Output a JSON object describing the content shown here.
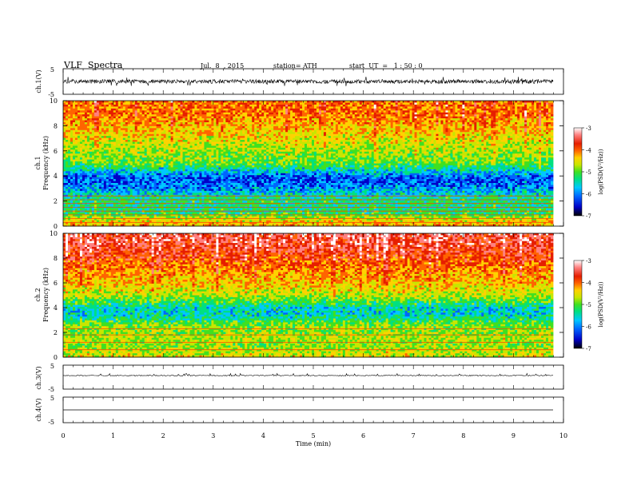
{
  "header": {
    "title": "VLF  Spectra",
    "date": "Jul.  8  , 2015",
    "station": "station= ATH",
    "start": "start  UT  =   1 : 50 : 0"
  },
  "colors": {
    "axis": "#000000",
    "colormap": [
      "#000000",
      "#0000c8",
      "#0064ff",
      "#00c8ff",
      "#00e080",
      "#40e020",
      "#c8e600",
      "#ffd200",
      "#ff6400",
      "#e61e00",
      "#ff8080",
      "#ffffff"
    ]
  },
  "chart_data": [
    {
      "panel": "ch1-waveform",
      "type": "line",
      "ylabel": "ch.1(V)",
      "xlim": [
        0,
        10
      ],
      "ylim": [
        -5,
        5
      ],
      "yticks": [
        "5",
        "-5"
      ],
      "note": "dense noisy waveform centered near 0 V with spikes to about ±1.5 V over 0–9.8 min"
    },
    {
      "panel": "ch1-spectrogram",
      "type": "heatmap",
      "ylabel": "ch.1\nFrequency  (kHz)",
      "ylabel_line1": "ch.1",
      "ylabel_line2": "Frequency  (kHz)",
      "xlim": [
        0,
        10
      ],
      "ylim": [
        0,
        10
      ],
      "yticks": [
        "0",
        "2",
        "4",
        "6",
        "8",
        "10"
      ],
      "colorbar": {
        "label": "log(PSD(V²/Hz))",
        "range": [
          -7,
          -3
        ],
        "ticks": [
          "-3",
          "-4",
          "-5",
          "-6",
          "-7"
        ]
      },
      "frequency_profile": {
        "freq_kHz": [
          0,
          0.5,
          1,
          1.5,
          2,
          2.5,
          3,
          3.5,
          4,
          4.5,
          5,
          6,
          7,
          8,
          9,
          10
        ],
        "log_psd": [
          -4.2,
          -4.6,
          -5.4,
          -5.6,
          -5.5,
          -5.8,
          -6.2,
          -6.5,
          -6.4,
          -5.8,
          -5.2,
          -4.9,
          -4.6,
          -4.3,
          -4.0,
          -4.0
        ]
      },
      "horizontal_lines_kHz": [
        0.3,
        0.6,
        0.9,
        1.2,
        1.5,
        1.8,
        2.1,
        2.4
      ]
    },
    {
      "panel": "ch2-spectrogram",
      "type": "heatmap",
      "ylabel": "ch.2\nFrequency  (kHz)",
      "ylabel_line1": "ch.2",
      "ylabel_line2": "Frequency  (kHz)",
      "xlim": [
        0,
        10
      ],
      "ylim": [
        0,
        10
      ],
      "yticks": [
        "0",
        "2",
        "4",
        "6",
        "8",
        "10"
      ],
      "colorbar": {
        "label": "log(PSD(V²/Hz))",
        "range": [
          -7,
          -3
        ],
        "ticks": [
          "-3",
          "-4",
          "-5",
          "-6",
          "-7"
        ]
      },
      "frequency_profile": {
        "freq_kHz": [
          0,
          0.5,
          1,
          1.5,
          2,
          2.5,
          3,
          3.5,
          4,
          4.5,
          5,
          6,
          7,
          8,
          9,
          10
        ],
        "log_psd": [
          -4.6,
          -4.8,
          -5.0,
          -4.8,
          -5.0,
          -5.0,
          -5.5,
          -5.9,
          -5.8,
          -5.3,
          -4.8,
          -4.4,
          -4.1,
          -3.8,
          -3.5,
          -3.4
        ]
      },
      "horizontal_lines_kHz": [
        0.6,
        1.2,
        1.8,
        2.3
      ]
    },
    {
      "panel": "ch3-waveform",
      "type": "line",
      "ylabel": "ch.3(V)",
      "xlim": [
        0,
        10
      ],
      "ylim": [
        -5,
        5
      ],
      "yticks": [
        "5",
        "-5"
      ]
    },
    {
      "panel": "ch4-waveform",
      "type": "line",
      "ylabel": "ch.4(V)",
      "xlim": [
        0,
        10
      ],
      "ylim": [
        -5,
        5
      ],
      "yticks": [
        "5",
        "-5"
      ],
      "xlabel": "Time  (min)",
      "xticks": [
        "0",
        "1",
        "2",
        "3",
        "4",
        "5",
        "6",
        "7",
        "8",
        "9",
        "10"
      ]
    }
  ]
}
